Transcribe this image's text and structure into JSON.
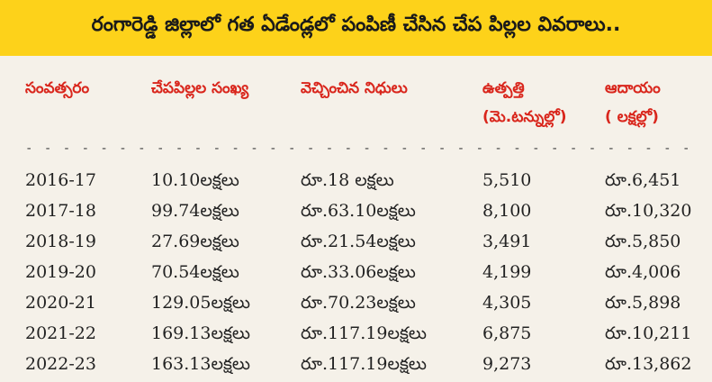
{
  "title": "రంగారెడ్డి జిల్లాలో గత ఏడేండ్లలో పంపిణీ చేసిన చేప పిల్లల వివరాలు..",
  "headers": {
    "year": "సంవత్సరం",
    "fish_count": "చేపపిల్లల సంఖ్య",
    "funds": "వెచ్చించిన నిధులు",
    "production_line1": "ఉత్పత్తి",
    "production_line2": "(మె.టన్నుల్లో)",
    "income_line1": "ఆదాయం",
    "income_line2": "( లక్షల్లో)"
  },
  "divider": "- - - - - - - - - - - - - - - - - - - - - - - - - - - - - - - - - - - - - - - - - - - - - - - - - - - - - - - - - - - - - - - -",
  "rows": [
    {
      "year": "2016-17",
      "fish_count": "10.10లక్షలు",
      "funds": "రూ.18 లక్షలు",
      "production": "5,510",
      "income": "రూ.6,451"
    },
    {
      "year": "2017-18",
      "fish_count": "99.74లక్షలు",
      "funds": "రూ.63.10లక్షలు",
      "production": "8,100",
      "income": "రూ.10,320"
    },
    {
      "year": "2018-19",
      "fish_count": "27.69లక్షలు",
      "funds": "రూ.21.54లక్షలు",
      "production": "3,491",
      "income": "రూ.5,850"
    },
    {
      "year": "2019-20",
      "fish_count": "70.54లక్షలు",
      "funds": "రూ.33.06లక్షలు",
      "production": "4,199",
      "income": "రూ.4,006"
    },
    {
      "year": "2020-21",
      "fish_count": "129.05లక్షలు",
      "funds": "రూ.70.23లక్షలు",
      "production": "4,305",
      "income": "రూ.5,898"
    },
    {
      "year": "2021-22",
      "fish_count": "169.13లక్షలు",
      "funds": "రూ.117.19లక్షలు",
      "production": "6,875",
      "income": "రూ.10,211"
    },
    {
      "year": "2022-23",
      "fish_count": "163.13లక్షలు",
      "funds": "రూ.117.19లక్షలు",
      "production": "9,273",
      "income": "రూ.13,862"
    }
  ]
}
